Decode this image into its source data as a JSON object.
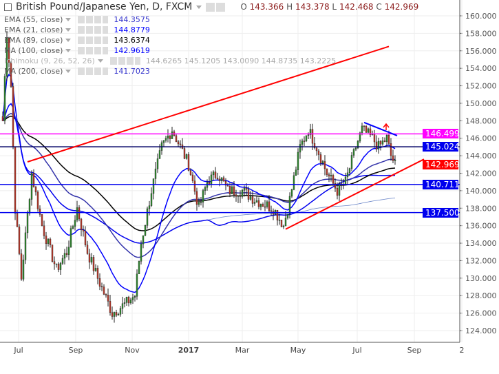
{
  "header": {
    "title": "British Pound/Japanese Yen, D, FXCM",
    "ohlc": {
      "o_label": "O",
      "o": "143.366",
      "h_label": "H",
      "h": "143.378",
      "l_label": "L",
      "l": "142.468",
      "c_label": "C",
      "c": "142.969"
    }
  },
  "indicators": [
    {
      "label": "EMA (55, close)",
      "value": "144.3575",
      "color": "#3333cc"
    },
    {
      "label": "EMA (21, close)",
      "value": "144.8779",
      "color": "#0000ff"
    },
    {
      "label": "EMA (89, close)",
      "value": "143.6374",
      "color": "#000000"
    },
    {
      "label": "MA (100, close)",
      "value": "142.9619",
      "color": "#0000ff"
    },
    {
      "label": "Ichimoku (9, 26, 52, 26)",
      "value": "144.6265 145.1205 143.0090 144.8735 143.2225",
      "color": "#999999"
    },
    {
      "label": "MA (200, close)",
      "value": "141.7023",
      "color": "#3333cc"
    }
  ],
  "price_tags": [
    {
      "value": "146.499",
      "price": 146.499,
      "color": "#ff00ff"
    },
    {
      "value": "145.024",
      "price": 145.024,
      "color": "#0000ee"
    },
    {
      "value": "142.969",
      "price": 142.969,
      "color": "#ff0000"
    },
    {
      "value": "140.711",
      "price": 140.711,
      "color": "#0000ee"
    },
    {
      "value": "137.500",
      "price": 137.5,
      "color": "#0000ee"
    }
  ],
  "chart_data": {
    "type": "candlestick",
    "title": "British Pound/Japanese Yen, D, FXCM",
    "ylim": [
      123,
      161
    ],
    "yticks": [
      "124.000",
      "126.000",
      "128.000",
      "130.000",
      "132.000",
      "134.000",
      "136.000",
      "138.000",
      "140.000",
      "142.000",
      "144.000",
      "146.000",
      "148.000",
      "150.000",
      "152.000",
      "154.000",
      "156.000",
      "158.000",
      "160.000"
    ],
    "xticks": [
      "Jul",
      "Sep",
      "Nov",
      "2017",
      "Mar",
      "May",
      "Jul",
      "Sep",
      "2"
    ],
    "close_keypoints_bar_price": [
      [
        0,
        148
      ],
      [
        2,
        158
      ],
      [
        4,
        152
      ],
      [
        6,
        138
      ],
      [
        9,
        130
      ],
      [
        14,
        142
      ],
      [
        19,
        136
      ],
      [
        26,
        131
      ],
      [
        31,
        133
      ],
      [
        36,
        138
      ],
      [
        41,
        133
      ],
      [
        46,
        130
      ],
      [
        53,
        126
      ],
      [
        59,
        127
      ],
      [
        64,
        128
      ],
      [
        67,
        134
      ],
      [
        72,
        140
      ],
      [
        77,
        145
      ],
      [
        82,
        147
      ],
      [
        86,
        145
      ],
      [
        90,
        143
      ],
      [
        95,
        138
      ],
      [
        99,
        141
      ],
      [
        104,
        142
      ],
      [
        109,
        140
      ],
      [
        116,
        140
      ],
      [
        122,
        139
      ],
      [
        131,
        138
      ],
      [
        136,
        136
      ],
      [
        139,
        139
      ],
      [
        144,
        145
      ],
      [
        148,
        147
      ],
      [
        152,
        145
      ],
      [
        157,
        142
      ],
      [
        162,
        140
      ],
      [
        166,
        141
      ],
      [
        171,
        145
      ],
      [
        174,
        147
      ],
      [
        179,
        146
      ],
      [
        182,
        145
      ],
      [
        186,
        146
      ],
      [
        188,
        144
      ],
      [
        190,
        143
      ]
    ],
    "trendlines": [
      {
        "from": [
          12,
          143.3
        ],
        "to": [
          187,
          156.5
        ],
        "color": "#ff0000"
      },
      {
        "from": [
          137,
          135.6
        ],
        "to": [
          204,
          143.6
        ],
        "color": "#ff0000"
      },
      {
        "from": [
          175,
          147.8
        ],
        "to": [
          191,
          146.3
        ],
        "color": "#0000ff"
      }
    ],
    "hlines": [
      {
        "price": 146.499,
        "color": "#ff00ff"
      },
      {
        "price": 145.024,
        "color": "#000066"
      },
      {
        "price": 140.711,
        "color": "#0000ee"
      },
      {
        "price": 137.5,
        "color": "#0000ee"
      }
    ]
  }
}
